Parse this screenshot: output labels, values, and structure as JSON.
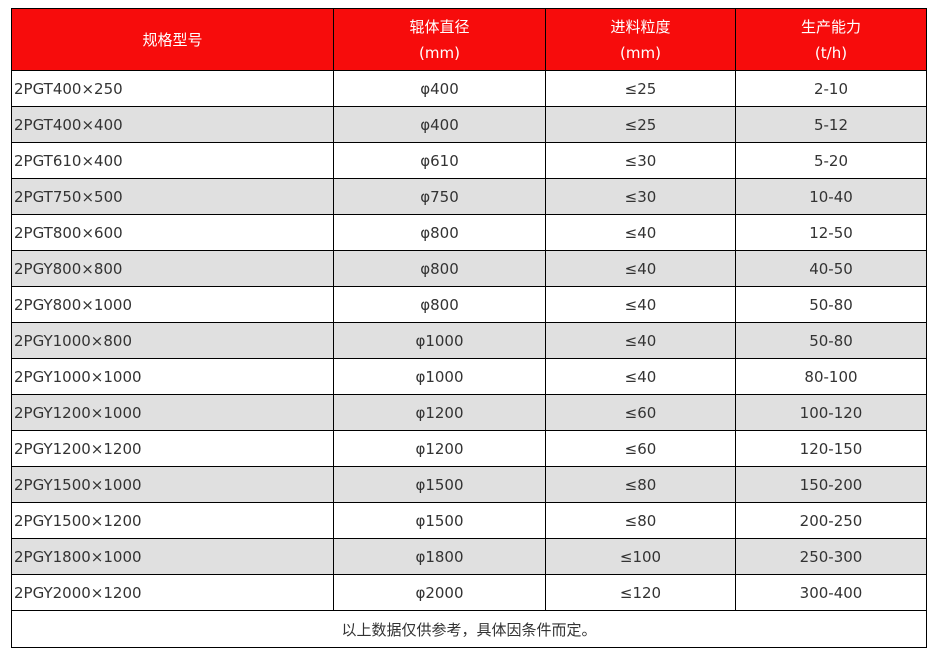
{
  "colors": {
    "header_bg": "#f70c0c",
    "alt_row_bg": "#e0e0e0"
  },
  "headers": [
    {
      "line1": "规格型号",
      "line2": ""
    },
    {
      "line1": "辊体直径",
      "line2": "(mm)"
    },
    {
      "line1": "进料粒度",
      "line2": "(mm)"
    },
    {
      "line1": "生产能力",
      "line2": "(t/h)"
    }
  ],
  "rows": [
    [
      "2PGT400×250",
      "φ400",
      "≤25",
      "2-10"
    ],
    [
      "2PGT400×400",
      "φ400",
      "≤25",
      "5-12"
    ],
    [
      "2PGT610×400",
      "φ610",
      "≤30",
      "5-20"
    ],
    [
      "2PGT750×500",
      "φ750",
      "≤30",
      "10-40"
    ],
    [
      "2PGT800×600",
      "φ800",
      "≤40",
      "12-50"
    ],
    [
      "2PGY800×800",
      "φ800",
      "≤40",
      "40-50"
    ],
    [
      "2PGY800×1000",
      "φ800",
      "≤40",
      "50-80"
    ],
    [
      "2PGY1000×800",
      "φ1000",
      "≤40",
      "50-80"
    ],
    [
      "2PGY1000×1000",
      "φ1000",
      "≤40",
      "80-100"
    ],
    [
      "2PGY1200×1000",
      "φ1200",
      "≤60",
      "100-120"
    ],
    [
      "2PGY1200×1200",
      "φ1200",
      "≤60",
      "120-150"
    ],
    [
      "2PGY1500×1000",
      "φ1500",
      "≤80",
      "150-200"
    ],
    [
      "2PGY1500×1200",
      "φ1500",
      "≤80",
      "200-250"
    ],
    [
      "2PGY1800×1000",
      "φ1800",
      "≤100",
      "250-300"
    ],
    [
      "2PGY2000×1200",
      "φ2000",
      "≤120",
      "300-400"
    ]
  ],
  "footer": "以上数据仅供参考，具体因条件而定。"
}
